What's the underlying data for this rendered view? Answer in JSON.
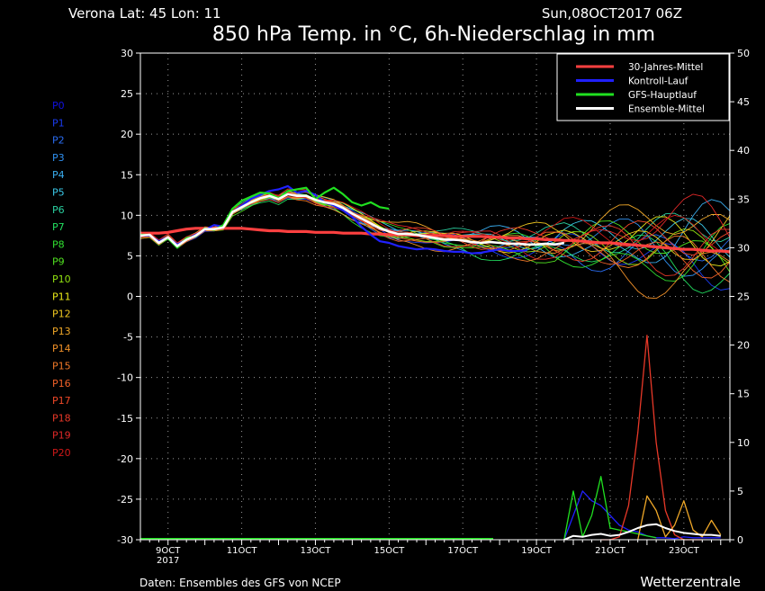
{
  "header": {
    "location": "Verona   Lat: 45  Lon: 11",
    "run": "Sun,08OCT2017 06Z",
    "title": "850 hPa Temp. in °C, 6h-Niederschlag in mm"
  },
  "footer": {
    "source": "Daten: Ensembles des GFS von NCEP",
    "brand": "Wetterzentrale"
  },
  "chart_data": {
    "type": "line",
    "title": "850 hPa Temp. in °C, 6h-Niederschlag in mm",
    "x_unit": "forecast step (6h), 0 = 08OCT 06Z",
    "x_range": [
      0,
      64
    ],
    "x_ticks": [
      {
        "t": 3,
        "label": "9OCT",
        "sub": "2017"
      },
      {
        "t": 11,
        "label": "11OCT"
      },
      {
        "t": 19,
        "label": "13OCT"
      },
      {
        "t": 27,
        "label": "15OCT"
      },
      {
        "t": 35,
        "label": "17OCT"
      },
      {
        "t": 43,
        "label": "19OCT"
      },
      {
        "t": 51,
        "label": "21OCT"
      },
      {
        "t": 59,
        "label": "23OCT"
      }
    ],
    "y_left": {
      "label": "850 hPa Temp. (°C)",
      "min": -30,
      "max": 30,
      "ticks": [
        30,
        25,
        20,
        15,
        10,
        5,
        0,
        -5,
        -10,
        -15,
        -20,
        -25,
        -30
      ]
    },
    "y_right": {
      "label": "6h-Niederschlag (mm)",
      "min": 0,
      "max": 50,
      "ticks": [
        50,
        45,
        40,
        35,
        30,
        25,
        20,
        15,
        10,
        5,
        0
      ]
    },
    "member_labels": [
      "P0",
      "P1",
      "P2",
      "P3",
      "P4",
      "P5",
      "P6",
      "P7",
      "P8",
      "P9",
      "P10",
      "P11",
      "P12",
      "P13",
      "P14",
      "P15",
      "P16",
      "P17",
      "P18",
      "P19",
      "P20"
    ],
    "member_colors": [
      "#1010e0",
      "#1a3cf0",
      "#2a6cf0",
      "#2f90f0",
      "#3aaef0",
      "#3ac8e8",
      "#2ad0a0",
      "#22e060",
      "#30e030",
      "#50e020",
      "#90e010",
      "#e8e818",
      "#f0c820",
      "#f0a828",
      "#f09028",
      "#f07828",
      "#f06028",
      "#f04828",
      "#e83828",
      "#e02828",
      "#d01818"
    ],
    "series": [
      {
        "name": "30-Jahres-Mittel",
        "color": "#ff4040",
        "values": [
          7.8,
          7.8,
          7.8,
          7.9,
          8.1,
          8.3,
          8.4,
          8.4,
          8.4,
          8.4,
          8.4,
          8.4,
          8.3,
          8.2,
          8.1,
          8.1,
          8.0,
          8.0,
          8.0,
          7.9,
          7.9,
          7.9,
          7.8,
          7.8,
          7.8,
          7.7,
          7.7,
          7.6,
          7.6,
          7.6,
          7.5,
          7.5,
          7.5,
          7.5,
          7.4,
          7.4,
          7.4,
          7.4,
          7.3,
          7.3,
          7.2,
          7.2,
          7.1,
          7.1,
          7.0,
          7.0,
          6.9,
          6.9,
          6.8,
          6.7,
          6.6,
          6.6,
          6.5,
          6.4,
          6.3,
          6.2,
          6.1,
          6.0,
          5.9,
          5.8,
          5.8,
          5.7,
          5.6,
          5.6,
          5.5
        ]
      },
      {
        "name": "Kontroll-Lauf",
        "color": "#2020ff",
        "values": [
          7.5,
          7.5,
          6.8,
          7.3,
          6.4,
          7.0,
          7.6,
          8.2,
          8.8,
          8.6,
          10.4,
          11.2,
          12.0,
          12.5,
          13.0,
          13.2,
          13.6,
          12.8,
          13.0,
          12.5,
          11.6,
          11.2,
          10.6,
          9.8,
          8.6,
          7.6,
          6.8,
          6.6,
          6.2,
          6.0,
          5.8,
          5.9,
          5.8,
          5.6,
          5.5,
          5.5,
          5.3,
          5.4,
          5.6,
          5.8,
          5.6,
          5.6,
          5.7
        ]
      },
      {
        "name": "GFS-Hauptlauf",
        "color": "#20e020",
        "values": [
          7.6,
          7.6,
          6.6,
          7.2,
          6.0,
          7.2,
          7.4,
          8.4,
          8.2,
          8.8,
          10.8,
          11.8,
          12.3,
          12.8,
          12.7,
          12.1,
          13.0,
          13.2,
          13.4,
          12.0,
          12.8,
          13.4,
          12.6,
          11.6,
          11.2,
          11.6,
          11.0,
          10.8
        ]
      },
      {
        "name": "Ensemble-Mittel",
        "color": "#ffffff",
        "values": [
          7.5,
          7.6,
          6.6,
          7.3,
          6.2,
          7.0,
          7.5,
          8.3,
          8.3,
          8.5,
          10.4,
          11.0,
          11.6,
          12.1,
          12.4,
          12.0,
          12.6,
          12.4,
          12.4,
          11.9,
          11.6,
          11.4,
          10.9,
          10.2,
          9.6,
          9.0,
          8.4,
          8.0,
          7.7,
          7.7,
          7.6,
          7.4,
          7.2,
          7.0,
          7.0,
          6.9,
          6.7,
          6.6,
          6.7,
          6.6,
          6.5,
          6.5,
          6.4,
          6.4,
          6.5,
          6.4,
          6.6
        ]
      }
    ],
    "precip_series": [
      {
        "name": "Kontroll-Lauf",
        "color": "#2020ff",
        "start": 46,
        "values": [
          0,
          2.5,
          5,
          4,
          3.5,
          2.5,
          1.5,
          1,
          0.8,
          0.4,
          0.2,
          0.2,
          0.1,
          0.3,
          0.2,
          0.2,
          0.2,
          0.2
        ]
      },
      {
        "name": "GFS-Hauptlauf",
        "color": "#20e020",
        "start": 46,
        "values": [
          0,
          5,
          0.3,
          2.5,
          6.5,
          1.2,
          1,
          0.8,
          0.6,
          0.4,
          0.2
        ]
      },
      {
        "name": "P18",
        "color": "#e83828",
        "start": 50,
        "values": [
          0,
          0,
          0.3,
          3.5,
          11,
          21,
          10,
          3,
          0.5,
          0,
          0,
          0
        ]
      },
      {
        "name": "P13",
        "color": "#f0a828",
        "start": 54,
        "values": [
          0,
          4.5,
          3,
          0.3,
          1.5,
          4,
          1,
          0.3,
          2,
          0.5
        ]
      },
      {
        "name": "Ensemble-Mittel",
        "color": "#ffffff",
        "start": 46,
        "values": [
          0,
          0.4,
          0.3,
          0.5,
          0.6,
          0.4,
          0.5,
          0.8,
          1.2,
          1.5,
          1.6,
          1.2,
          0.9,
          0.7,
          0.6,
          0.5,
          0.5,
          0.4
        ]
      }
    ],
    "legend": {
      "placement": "top-right",
      "entries": [
        {
          "label": "30-Jahres-Mittel",
          "color": "#ff4040"
        },
        {
          "label": "Kontroll-Lauf",
          "color": "#2020ff"
        },
        {
          "label": "GFS-Hauptlauf",
          "color": "#20e020"
        },
        {
          "label": "Ensemble-Mittel",
          "color": "#ffffff"
        }
      ]
    },
    "grid": true
  }
}
